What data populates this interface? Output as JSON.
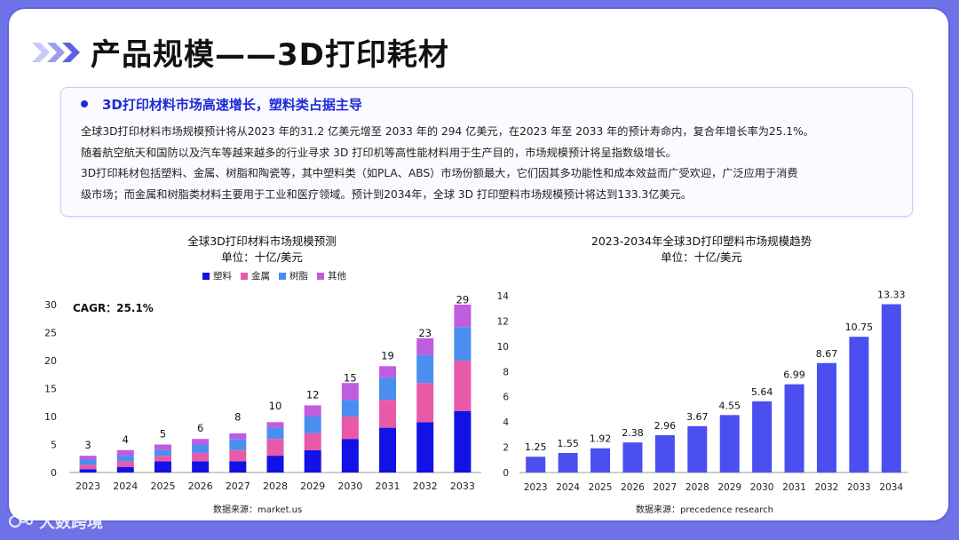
{
  "page": {
    "title": "产品规模——3D打印耗材",
    "logo_text": "大数跨境"
  },
  "card": {
    "heading": "3D打印材料市场高速增长，塑料类占据主导",
    "lines": [
      "全球3D打印材料市场规模预计将从2023 年的31.2 亿美元增至 2033 年的 294 亿美元，在2023 年至 2033 年的预计寿命内，复合年增长率为25.1%。",
      "随着航空航天和国防以及汽车等越来越多的行业寻求 3D 打印机等高性能材料用于生产目的，市场规模预计将呈指数级增长。",
      "3D打印耗材包括塑料、金属、树脂和陶瓷等，其中塑料类（如PLA、ABS）市场份额最大，它们因其多功能性和成本效益而广受欢迎，广泛应用于消费",
      "级市场；而金属和树脂类材料主要用于工业和医疗领域。预计到2034年，全球 3D 打印塑料市场规模预计将达到133.3亿美元。"
    ]
  },
  "chart_data": [
    {
      "type": "bar",
      "stacked": true,
      "title": "全球3D打印材料市场规模预测",
      "subtitle": "单位：十亿/美元",
      "annotation": "CAGR：25.1%",
      "source": "数据来源：market.us",
      "categories": [
        "2023",
        "2024",
        "2025",
        "2026",
        "2027",
        "2028",
        "2029",
        "2030",
        "2031",
        "2032",
        "2033"
      ],
      "totals": [
        3,
        4,
        5,
        6,
        8,
        10,
        12,
        15,
        19,
        23,
        29
      ],
      "total_labels": [
        "3",
        "4",
        "5",
        "6",
        "8",
        "10",
        "12",
        "15",
        "19",
        "23",
        "29"
      ],
      "series": [
        {
          "name": "塑料",
          "color": "#1212e6",
          "values": [
            0.6,
            1,
            2,
            2,
            2,
            3,
            4,
            6,
            8,
            9,
            11
          ]
        },
        {
          "name": "金属",
          "color": "#e85aa8",
          "values": [
            0.8,
            1,
            1,
            1.5,
            2,
            3,
            3,
            4,
            5,
            7,
            9
          ]
        },
        {
          "name": "树脂",
          "color": "#4a8ff0",
          "values": [
            0.9,
            1,
            1,
            1.5,
            2,
            2,
            3,
            3,
            4,
            5,
            6
          ]
        },
        {
          "name": "其他",
          "color": "#c05ce0",
          "values": [
            0.7,
            1,
            1,
            1,
            1,
            1,
            2,
            3,
            2,
            3,
            4
          ]
        }
      ],
      "ylim": [
        0,
        30
      ],
      "yticks": [
        0,
        5,
        10,
        15,
        20,
        25,
        30
      ],
      "ytick_labels": [
        "0",
        "5",
        "10",
        "15",
        "20",
        "25",
        "30"
      ]
    },
    {
      "type": "bar",
      "title": "2023-2034年全球3D打印塑料市场规模趋势",
      "subtitle": "单位：十亿/美元",
      "source": "数据来源：precedence research",
      "color": "#4b4ff0",
      "categories": [
        "2023",
        "2024",
        "2025",
        "2026",
        "2027",
        "2028",
        "2029",
        "2030",
        "2031",
        "2032",
        "2033",
        "2034"
      ],
      "values": [
        1.25,
        1.55,
        1.92,
        2.38,
        2.96,
        3.67,
        4.55,
        5.64,
        6.99,
        8.67,
        10.75,
        13.33
      ],
      "value_labels": [
        "1.25",
        "1.55",
        "1.92",
        "2.38",
        "2.96",
        "3.67",
        "4.55",
        "5.64",
        "6.99",
        "8.67",
        "10.75",
        "13.33"
      ],
      "ylim": [
        0,
        14
      ],
      "yticks": [
        0,
        2,
        4,
        6,
        8,
        10,
        12,
        14
      ],
      "ytick_labels": [
        "0",
        "2",
        "4",
        "6",
        "8",
        "10",
        "12",
        "14"
      ]
    }
  ]
}
